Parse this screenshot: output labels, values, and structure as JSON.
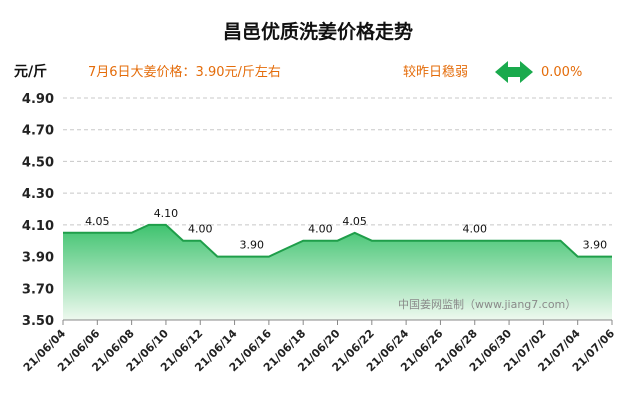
{
  "colors": {
    "fill_top": "#3fc36f",
    "fill_bottom": "#eef9ef",
    "line": "#1f9e4a",
    "arrow": "#1aaa4d",
    "orange": "#e46c0a",
    "grid": "#c8c8c8"
  },
  "chart_data": {
    "type": "area",
    "title": "昌邑优质洗姜价格走势",
    "ylabel": "元/斤",
    "headline": "7月6日大姜价格：3.90元/斤左右",
    "trend_label": "较昨日稳弱",
    "change": "0.00%",
    "watermark": "中国姜网监制（www.jiang7.com）",
    "ylim": [
      3.5,
      4.9
    ],
    "yticks": [
      "3.50",
      "3.70",
      "3.90",
      "4.10",
      "4.30",
      "4.50",
      "4.70",
      "4.90"
    ],
    "grid": true,
    "x_tick_labels": [
      "21/06/04",
      "21/06/06",
      "21/06/08",
      "21/06/10",
      "21/06/12",
      "21/06/14",
      "21/06/16",
      "21/06/18",
      "21/06/20",
      "21/06/22",
      "21/06/24",
      "21/06/26",
      "21/06/28",
      "21/06/30",
      "21/07/02",
      "21/07/04",
      "21/07/06"
    ],
    "dates": [
      "21/06/04",
      "21/06/05",
      "21/06/06",
      "21/06/07",
      "21/06/08",
      "21/06/09",
      "21/06/10",
      "21/06/11",
      "21/06/12",
      "21/06/13",
      "21/06/14",
      "21/06/15",
      "21/06/16",
      "21/06/17",
      "21/06/18",
      "21/06/19",
      "21/06/20",
      "21/06/21",
      "21/06/22",
      "21/06/23",
      "21/06/24",
      "21/06/25",
      "21/06/26",
      "21/06/27",
      "21/06/28",
      "21/06/29",
      "21/06/30",
      "21/07/01",
      "21/07/02",
      "21/07/03",
      "21/07/04",
      "21/07/05",
      "21/07/06"
    ],
    "values": [
      4.05,
      4.05,
      4.05,
      4.05,
      4.05,
      4.1,
      4.1,
      4.0,
      4.0,
      3.9,
      3.9,
      3.9,
      3.9,
      3.95,
      4.0,
      4.0,
      4.0,
      4.05,
      4.0,
      4.0,
      4.0,
      4.0,
      4.0,
      4.0,
      4.0,
      4.0,
      4.0,
      4.0,
      4.0,
      4.0,
      3.9,
      3.9,
      3.9
    ],
    "data_labels": [
      {
        "date": "21/06/06",
        "value": 4.05,
        "text": "4.05"
      },
      {
        "date": "21/06/10",
        "value": 4.1,
        "text": "4.10"
      },
      {
        "date": "21/06/12",
        "value": 4.0,
        "text": "4.00"
      },
      {
        "date": "21/06/15",
        "value": 3.9,
        "text": "3.90"
      },
      {
        "date": "21/06/19",
        "value": 4.0,
        "text": "4.00"
      },
      {
        "date": "21/06/21",
        "value": 4.05,
        "text": "4.05"
      },
      {
        "date": "21/06/28",
        "value": 4.0,
        "text": "4.00"
      },
      {
        "date": "21/07/05",
        "value": 3.9,
        "text": "3.90"
      }
    ]
  }
}
